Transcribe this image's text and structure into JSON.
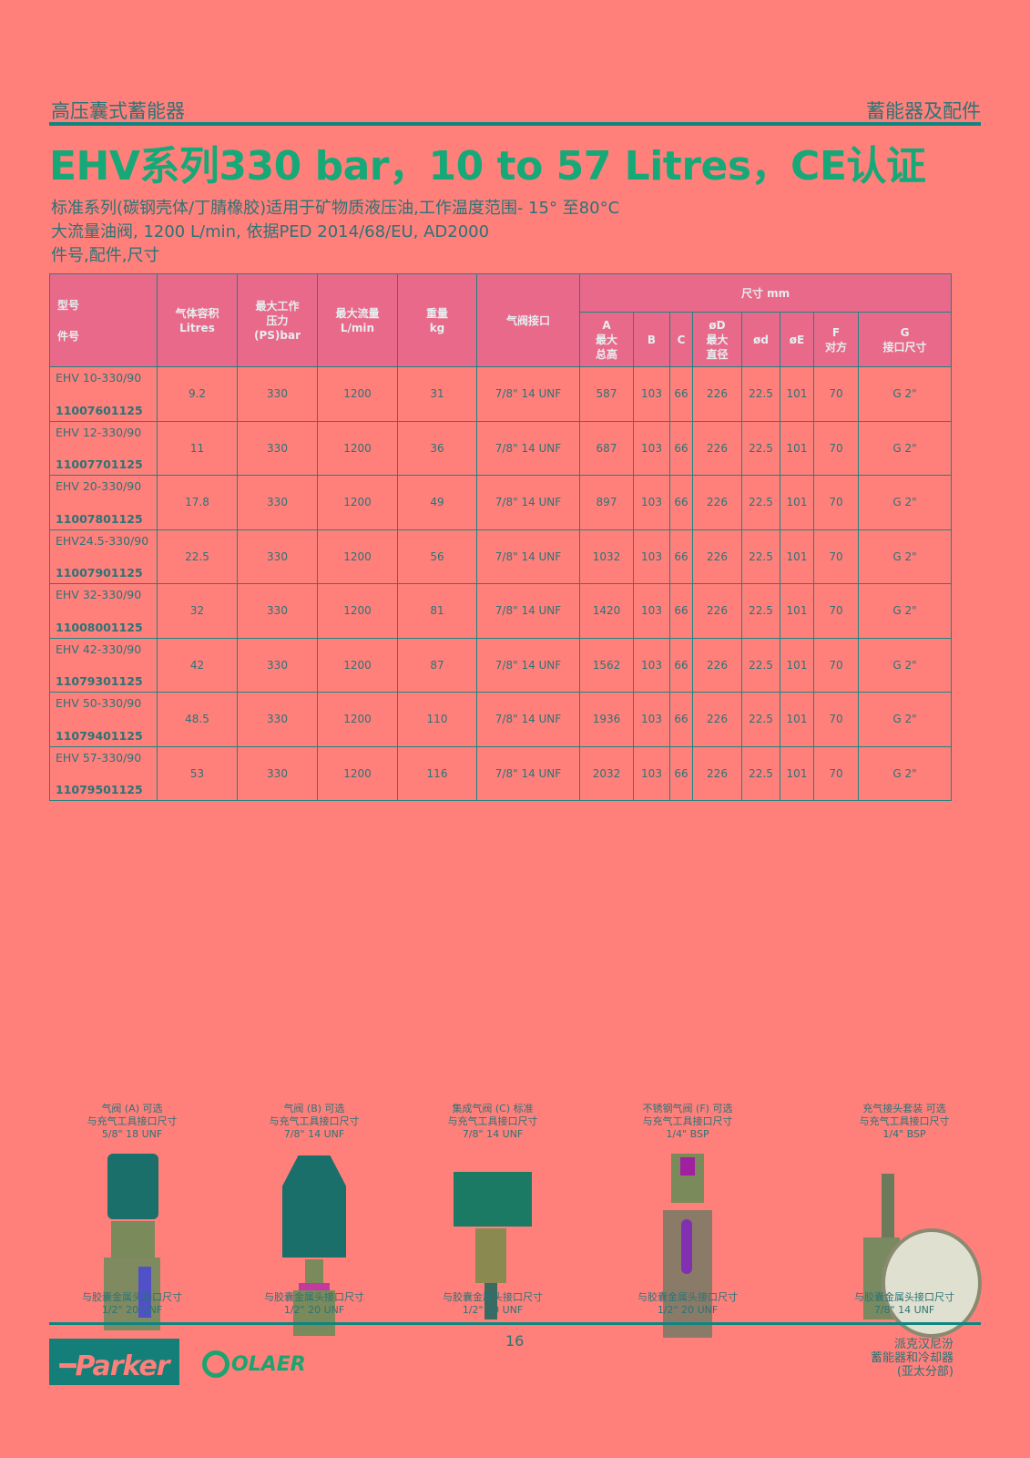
{
  "header": {
    "left": "高压囊式蓄能器",
    "right": "蓄能器及配件"
  },
  "title": "EHV系列330 bar，10 to 57 Litres，CE认证",
  "subtitles": [
    "标准系列(碳钢壳体/丁腈橡胶)适用于矿物质液压油,工作温度范围- 15° 至80°C",
    "大流量油阀, 1200 L/min, 依据PED 2014/68/EU, AD2000",
    "件号,配件,尺寸"
  ],
  "table": {
    "headers": {
      "model": "型号",
      "part": "件号",
      "volume": "气体容积\nLitres",
      "pressure": "最大工作\n压力\n(PS)bar",
      "flow": "最大流量\nL/min",
      "weight": "重量\nkg",
      "valve": "气阀接口",
      "dims": "尺寸 mm",
      "A": "A\n最大\n总高",
      "B": "B",
      "C": "C",
      "D": "øD\n最大\n直径",
      "d": "ød",
      "E": "øE",
      "F": "F\n对方",
      "G": "G\n接口尺寸"
    },
    "rows": [
      {
        "model": "EHV 10-330/90",
        "part": "11007601125",
        "volume": "9.2",
        "pressure": "330",
        "flow": "1200",
        "weight": "31",
        "valve": "7/8\" 14 UNF",
        "A": "587",
        "B": "103",
        "C": "66",
        "D": "226",
        "d": "22.5",
        "E": "101",
        "F": "70",
        "G": "G 2\""
      },
      {
        "model": "EHV 12-330/90",
        "part": "11007701125",
        "volume": "11",
        "pressure": "330",
        "flow": "1200",
        "weight": "36",
        "valve": "7/8\" 14 UNF",
        "A": "687",
        "B": "103",
        "C": "66",
        "D": "226",
        "d": "22.5",
        "E": "101",
        "F": "70",
        "G": "G 2\""
      },
      {
        "model": "EHV 20-330/90",
        "part": "11007801125",
        "volume": "17.8",
        "pressure": "330",
        "flow": "1200",
        "weight": "49",
        "valve": "7/8\" 14 UNF",
        "A": "897",
        "B": "103",
        "C": "66",
        "D": "226",
        "d": "22.5",
        "E": "101",
        "F": "70",
        "G": "G 2\""
      },
      {
        "model": "EHV24.5-330/90",
        "part": "11007901125",
        "volume": "22.5",
        "pressure": "330",
        "flow": "1200",
        "weight": "56",
        "valve": "7/8\" 14 UNF",
        "A": "1032",
        "B": "103",
        "C": "66",
        "D": "226",
        "d": "22.5",
        "E": "101",
        "F": "70",
        "G": "G 2\""
      },
      {
        "model": "EHV 32-330/90",
        "part": "11008001125",
        "volume": "32",
        "pressure": "330",
        "flow": "1200",
        "weight": "81",
        "valve": "7/8\" 14 UNF",
        "A": "1420",
        "B": "103",
        "C": "66",
        "D": "226",
        "d": "22.5",
        "E": "101",
        "F": "70",
        "G": "G 2\""
      },
      {
        "model": "EHV 42-330/90",
        "part": "11079301125",
        "volume": "42",
        "pressure": "330",
        "flow": "1200",
        "weight": "87",
        "valve": "7/8\" 14 UNF",
        "A": "1562",
        "B": "103",
        "C": "66",
        "D": "226",
        "d": "22.5",
        "E": "101",
        "F": "70",
        "G": "G 2\""
      },
      {
        "model": "EHV 50-330/90",
        "part": "11079401125",
        "volume": "48.5",
        "pressure": "330",
        "flow": "1200",
        "weight": "110",
        "valve": "7/8\" 14 UNF",
        "A": "1936",
        "B": "103",
        "C": "66",
        "D": "226",
        "d": "22.5",
        "E": "101",
        "F": "70",
        "G": "G 2\""
      },
      {
        "model": "EHV 57-330/90",
        "part": "11079501125",
        "volume": "53",
        "pressure": "330",
        "flow": "1200",
        "weight": "116",
        "valve": "7/8\" 14 UNF",
        "A": "2032",
        "B": "103",
        "C": "66",
        "D": "226",
        "d": "22.5",
        "E": "101",
        "F": "70",
        "G": "G 2\""
      }
    ]
  },
  "accessories": [
    {
      "name": "气阀 (A) 可选",
      "top1": "与充气工具接口尺寸",
      "top2": "5/8\" 18 UNF",
      "bot1": "与胶囊金属头接口尺寸",
      "bot2": "1/2\" 20 UNF",
      "icon": "gas-valve-a"
    },
    {
      "name": "气阀 (B) 可选",
      "top1": "与充气工具接口尺寸",
      "top2": "7/8\" 14 UNF",
      "bot1": "与胶囊金属头接口尺寸",
      "bot2": "1/2\" 20 UNF",
      "icon": "gas-valve-b"
    },
    {
      "name": "集成气阀 (C) 标准",
      "top1": "与充气工具接口尺寸",
      "top2": "7/8\" 14 UNF",
      "bot1": "与胶囊金属头接口尺寸",
      "bot2": "1/2\" 20 UNF",
      "icon": "gas-valve-c"
    },
    {
      "name": "不锈钢气阀 (F) 可选",
      "top1": "与充气工具接口尺寸",
      "top2": "1/4\" BSP",
      "bot1": "与胶囊金属头接口尺寸",
      "bot2": "1/2\" 20 UNF",
      "icon": "gas-valve-f"
    },
    {
      "name": "充气接头套装 可选",
      "top1": "与充气工具接口尺寸",
      "top2": "1/4\" BSP",
      "bot1": "与胶囊金属头接口尺寸",
      "bot2": "7/8\" 14 UNF",
      "icon": "charging-kit-gauge"
    }
  ],
  "footer": {
    "page": "16",
    "logo1": "Parker",
    "logo2": "OLAER",
    "right": [
      "派克汉尼汾",
      "蓄能器和冷却器",
      "(亚太分部)"
    ]
  },
  "colors": {
    "background": "#ff7f7b",
    "title": "#17a878",
    "text": "#2b7476",
    "header_cell": "#e8698a",
    "rule": "#0f8580"
  }
}
